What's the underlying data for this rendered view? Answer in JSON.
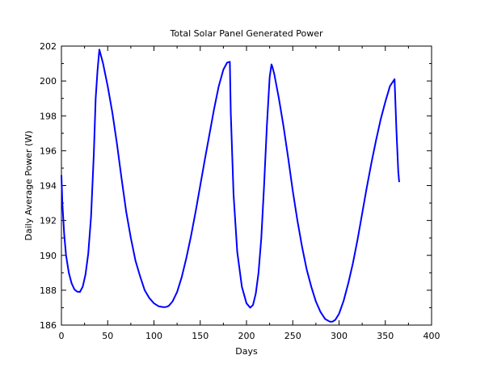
{
  "colors": {
    "background": "#ffffff",
    "axis": "#000000",
    "series": "#0000ff"
  },
  "chart_data": {
    "type": "line",
    "title": "Total Solar Panel Generated Power",
    "xlabel": "Days",
    "ylabel": "Daily Average Power (W)",
    "xlim": [
      0,
      400
    ],
    "ylim": [
      186,
      202
    ],
    "xticks": [
      0,
      50,
      100,
      150,
      200,
      250,
      300,
      350,
      400
    ],
    "yticks": [
      186,
      188,
      190,
      192,
      194,
      196,
      198,
      200,
      202
    ],
    "grid": false,
    "legend": "none",
    "series": [
      {
        "color": "#0000ff",
        "x": [
          0,
          1,
          3,
          5,
          8,
          11,
          14,
          17,
          20,
          23,
          26,
          29,
          32,
          35,
          37,
          39,
          41,
          42,
          45,
          50,
          55,
          60,
          65,
          70,
          75,
          80,
          85,
          90,
          95,
          100,
          105,
          110,
          113,
          116,
          120,
          125,
          130,
          135,
          140,
          145,
          150,
          155,
          160,
          165,
          170,
          175,
          179,
          182,
          183,
          186,
          190,
          195,
          200,
          204,
          207,
          210,
          213,
          216,
          219,
          222,
          225,
          227,
          228,
          230,
          235,
          240,
          245,
          250,
          255,
          260,
          265,
          270,
          275,
          280,
          285,
          290,
          293,
          296,
          300,
          305,
          310,
          315,
          320,
          325,
          330,
          335,
          340,
          345,
          350,
          355,
          360,
          362,
          364,
          365
        ],
        "y": [
          194.6,
          193.0,
          191.2,
          190.0,
          189.0,
          188.4,
          188.05,
          187.92,
          187.9,
          188.2,
          188.9,
          190.1,
          192.2,
          195.8,
          199.0,
          200.6,
          201.8,
          201.6,
          201.0,
          199.7,
          198.2,
          196.4,
          194.4,
          192.5,
          191.0,
          189.7,
          188.8,
          188.0,
          187.55,
          187.25,
          187.08,
          187.03,
          187.04,
          187.1,
          187.35,
          187.9,
          188.75,
          189.85,
          191.1,
          192.5,
          194.0,
          195.5,
          196.95,
          198.4,
          199.7,
          200.65,
          201.05,
          201.1,
          198.2,
          193.5,
          190.2,
          188.2,
          187.25,
          187.0,
          187.15,
          187.8,
          189.0,
          191.0,
          194.0,
          197.4,
          200.2,
          200.95,
          200.8,
          200.4,
          199.0,
          197.4,
          195.6,
          193.7,
          192.0,
          190.5,
          189.2,
          188.2,
          187.35,
          186.75,
          186.35,
          186.2,
          186.2,
          186.3,
          186.65,
          187.4,
          188.4,
          189.55,
          190.9,
          192.4,
          193.9,
          195.3,
          196.6,
          197.8,
          198.8,
          199.7,
          200.1,
          197.2,
          194.8,
          194.2
        ]
      }
    ]
  }
}
